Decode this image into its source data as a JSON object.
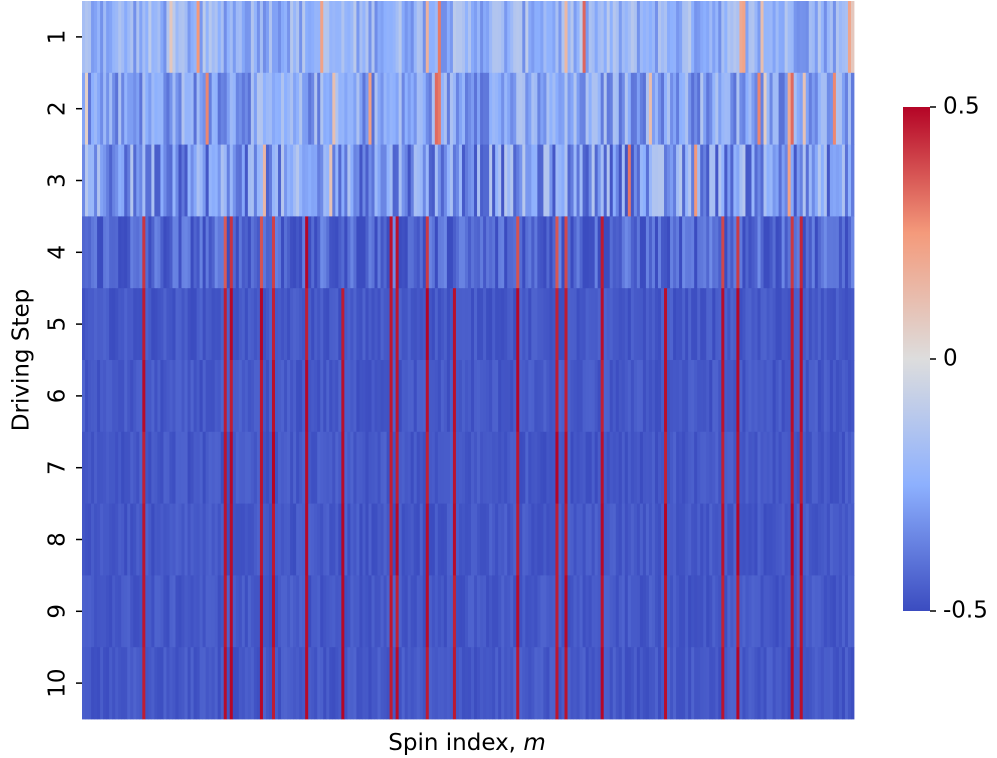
{
  "chart_data": {
    "type": "heatmap",
    "title": "",
    "xlabel": "Spin index, ",
    "xlabel_italic": "m",
    "ylabel": "Driving Step",
    "y_categories": [
      "1",
      "2",
      "3",
      "4",
      "5",
      "6",
      "7",
      "8",
      "9",
      "10"
    ],
    "x_tick_labels": [],
    "n_spins": 256,
    "colormap": "coolwarm",
    "value_range": [
      -0.5,
      0.5
    ],
    "colorbar": {
      "ticks": [
        0.5,
        0,
        -0.5
      ],
      "tick_labels": [
        "0.5",
        "0",
        "-0.5"
      ]
    },
    "row_profiles": [
      {
        "row": "1",
        "background_value": -0.22,
        "spread": 0.12
      },
      {
        "row": "2",
        "background_value": -0.27,
        "spread": 0.14
      },
      {
        "row": "3",
        "background_value": -0.3,
        "spread": 0.18
      },
      {
        "row": "4",
        "background_value": -0.44,
        "spread": 0.1
      },
      {
        "row": "5",
        "background_value": -0.47,
        "spread": 0.03
      },
      {
        "row": "6",
        "background_value": -0.47,
        "spread": 0.03
      },
      {
        "row": "7",
        "background_value": -0.47,
        "spread": 0.03
      },
      {
        "row": "8",
        "background_value": -0.47,
        "spread": 0.03
      },
      {
        "row": "9",
        "background_value": -0.47,
        "spread": 0.03
      },
      {
        "row": "10",
        "background_value": -0.47,
        "spread": 0.03
      }
    ],
    "flipped_spin_value": 0.5,
    "flipped_fraction_final": 0.12
  }
}
